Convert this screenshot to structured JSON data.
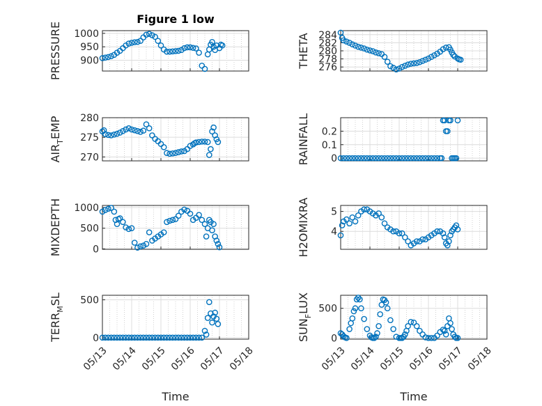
{
  "figure": {
    "title": "Figure 1 low",
    "xlabel": "Time",
    "marker_color": "#0072BD",
    "x_tick_labels": [
      "05/13",
      "05/14",
      "05/15",
      "05/16",
      "05/17",
      "05/18"
    ]
  },
  "chart_data": [
    {
      "type": "scatter",
      "ylabel": "PRESSURE",
      "ylim": [
        860,
        1010
      ],
      "yticks": [
        900,
        950,
        1000
      ],
      "xlim": [
        0,
        5
      ],
      "grid": true,
      "x": [
        0,
        0.1,
        0.2,
        0.3,
        0.4,
        0.5,
        0.6,
        0.7,
        0.8,
        0.9,
        1.0,
        1.1,
        1.2,
        1.3,
        1.4,
        1.5,
        1.6,
        1.7,
        1.8,
        1.9,
        2.0,
        2.1,
        2.2,
        2.3,
        2.4,
        2.5,
        2.6,
        2.7,
        2.8,
        2.9,
        3.0,
        3.1,
        3.2,
        3.3,
        3.4,
        3.5,
        3.6,
        3.65,
        3.7,
        3.75,
        3.8,
        3.85,
        3.9,
        4.0,
        4.05,
        4.1
      ],
      "y": [
        908,
        910,
        912,
        915,
        920,
        928,
        935,
        945,
        955,
        962,
        965,
        967,
        968,
        972,
        985,
        995,
        998,
        993,
        987,
        972,
        955,
        940,
        932,
        932,
        933,
        934,
        935,
        938,
        945,
        948,
        948,
        946,
        944,
        928,
        880,
        868,
        922,
        940,
        958,
        968,
        950,
        938,
        955,
        945,
        958,
        955
      ]
    },
    {
      "type": "scatter",
      "ylabel": "THETA",
      "ylim": [
        275,
        285
      ],
      "yticks": [
        276,
        278,
        280,
        282,
        284
      ],
      "xlim": [
        0,
        5
      ],
      "grid": true,
      "x": [
        0,
        0.05,
        0.1,
        0.2,
        0.3,
        0.4,
        0.5,
        0.6,
        0.7,
        0.8,
        0.9,
        1.0,
        1.1,
        1.2,
        1.3,
        1.4,
        1.5,
        1.6,
        1.7,
        1.8,
        1.9,
        2.0,
        2.1,
        2.2,
        2.3,
        2.4,
        2.5,
        2.6,
        2.7,
        2.8,
        2.9,
        3.0,
        3.1,
        3.2,
        3.3,
        3.4,
        3.5,
        3.6,
        3.7,
        3.75,
        3.8,
        3.85,
        3.9,
        4.0,
        4.05,
        4.1
      ],
      "y": [
        284.5,
        283.2,
        282.6,
        282.3,
        282.0,
        281.6,
        281.3,
        281.0,
        280.8,
        280.6,
        280.3,
        280.1,
        279.9,
        279.6,
        279.4,
        279.2,
        278.5,
        277.3,
        276.2,
        275.8,
        275.4,
        275.6,
        276.0,
        276.3,
        276.6,
        276.8,
        276.9,
        277.0,
        277.2,
        277.5,
        277.8,
        278.1,
        278.5,
        278.9,
        279.3,
        279.8,
        280.4,
        280.8,
        280.9,
        280.3,
        279.6,
        279.0,
        278.6,
        278.1,
        277.9,
        277.8
      ]
    },
    {
      "type": "scatter",
      "ylabel": "AIR_TEMP",
      "ylim": [
        269,
        280
      ],
      "yticks": [
        270,
        275,
        280
      ],
      "xlim": [
        0,
        5
      ],
      "grid": true,
      "x": [
        0,
        0.05,
        0.1,
        0.2,
        0.3,
        0.4,
        0.5,
        0.6,
        0.7,
        0.8,
        0.9,
        1.0,
        1.1,
        1.2,
        1.3,
        1.4,
        1.5,
        1.6,
        1.7,
        1.8,
        1.9,
        2.0,
        2.1,
        2.2,
        2.3,
        2.4,
        2.5,
        2.6,
        2.7,
        2.8,
        2.9,
        3.0,
        3.1,
        3.15,
        3.2,
        3.3,
        3.4,
        3.5,
        3.6,
        3.65,
        3.7,
        3.75,
        3.8,
        3.85,
        3.9,
        3.95
      ],
      "y": [
        276.5,
        276.8,
        275.8,
        275.6,
        275.5,
        275.7,
        275.9,
        276.2,
        276.6,
        277.0,
        277.3,
        277.0,
        276.8,
        276.6,
        276.4,
        276.7,
        278.3,
        277.3,
        275.5,
        274.6,
        274.0,
        273.3,
        272.5,
        271.0,
        270.8,
        270.9,
        271.0,
        271.2,
        271.4,
        271.5,
        272.0,
        272.8,
        273.2,
        273.5,
        273.7,
        273.8,
        273.9,
        273.9,
        273.8,
        270.5,
        272.0,
        276.5,
        277.5,
        275.5,
        274.5,
        273.8
      ]
    },
    {
      "type": "scatter",
      "ylabel": "RAINFALL",
      "ylim": [
        -0.02,
        0.3
      ],
      "yticks": [
        0,
        0.1,
        0.2
      ],
      "xlim": [
        0,
        5
      ],
      "grid": true,
      "x": [
        0,
        0.1,
        0.2,
        0.3,
        0.4,
        0.5,
        0.6,
        0.7,
        0.8,
        0.9,
        1.0,
        1.1,
        1.2,
        1.3,
        1.4,
        1.5,
        1.6,
        1.7,
        1.8,
        1.9,
        2.0,
        2.1,
        2.2,
        2.3,
        2.4,
        2.5,
        2.6,
        2.7,
        2.8,
        2.9,
        3.0,
        3.1,
        3.2,
        3.3,
        3.4,
        3.45,
        3.5,
        3.55,
        3.6,
        3.65,
        3.7,
        3.75,
        3.8,
        3.85,
        3.9,
        3.95,
        4.0
      ],
      "y": [
        0,
        0,
        0,
        0,
        0,
        0,
        0,
        0,
        0,
        0,
        0,
        0,
        0,
        0,
        0,
        0,
        0,
        0,
        0,
        0,
        0,
        0,
        0,
        0,
        0,
        0,
        0,
        0,
        0,
        0,
        0,
        0,
        0,
        0,
        0,
        0,
        0.28,
        0.28,
        0.2,
        0.2,
        0.28,
        0.28,
        0,
        0,
        0,
        0,
        0.28
      ]
    },
    {
      "type": "scatter",
      "ylabel": "MIXDEPTH",
      "ylim": [
        -10,
        1050
      ],
      "yticks": [
        0,
        500,
        1000
      ],
      "xlim": [
        0,
        5
      ],
      "grid": true,
      "x": [
        0,
        0.1,
        0.2,
        0.3,
        0.4,
        0.45,
        0.5,
        0.55,
        0.6,
        0.7,
        0.8,
        0.9,
        1.0,
        1.1,
        1.2,
        1.3,
        1.4,
        1.5,
        1.6,
        1.7,
        1.8,
        1.9,
        2.0,
        2.1,
        2.2,
        2.3,
        2.4,
        2.5,
        2.6,
        2.7,
        2.8,
        2.9,
        3.0,
        3.1,
        3.2,
        3.3,
        3.4,
        3.5,
        3.55,
        3.6,
        3.65,
        3.7,
        3.75,
        3.8,
        3.85,
        3.9,
        3.95,
        4.0
      ],
      "y": [
        900,
        940,
        970,
        990,
        900,
        700,
        600,
        720,
        740,
        650,
        520,
        480,
        500,
        150,
        30,
        60,
        80,
        120,
        400,
        200,
        250,
        300,
        350,
        400,
        650,
        680,
        700,
        720,
        800,
        900,
        950,
        920,
        850,
        700,
        750,
        820,
        700,
        600,
        300,
        500,
        700,
        650,
        450,
        600,
        300,
        200,
        120,
        40
      ]
    },
    {
      "type": "scatter",
      "ylabel": "H2OMIXRA",
      "ylim": [
        3.1,
        5.3
      ],
      "yticks": [
        4,
        5
      ],
      "xlim": [
        0,
        5
      ],
      "grid": true,
      "x": [
        0,
        0.05,
        0.1,
        0.2,
        0.3,
        0.4,
        0.5,
        0.6,
        0.7,
        0.8,
        0.9,
        1.0,
        1.1,
        1.2,
        1.3,
        1.4,
        1.5,
        1.6,
        1.7,
        1.8,
        1.9,
        2.0,
        2.1,
        2.2,
        2.3,
        2.4,
        2.5,
        2.6,
        2.7,
        2.8,
        2.9,
        3.0,
        3.1,
        3.2,
        3.3,
        3.4,
        3.5,
        3.55,
        3.6,
        3.65,
        3.7,
        3.75,
        3.8,
        3.85,
        3.9,
        3.95,
        4.0
      ],
      "y": [
        3.8,
        4.3,
        4.5,
        4.6,
        4.4,
        4.7,
        4.5,
        4.8,
        5.0,
        5.1,
        5.1,
        5.0,
        4.9,
        4.8,
        4.9,
        4.7,
        4.4,
        4.2,
        4.1,
        4.0,
        4.0,
        3.9,
        3.9,
        3.7,
        3.5,
        3.3,
        3.4,
        3.5,
        3.5,
        3.6,
        3.6,
        3.7,
        3.8,
        3.9,
        4.0,
        4.0,
        3.9,
        3.7,
        3.4,
        3.3,
        3.5,
        3.8,
        4.0,
        4.1,
        4.2,
        4.3,
        4.1
      ]
    },
    {
      "type": "scatter",
      "ylabel": "TERR_MSL",
      "ylim": [
        -20,
        560
      ],
      "yticks": [
        0,
        500
      ],
      "xlim": [
        0,
        5
      ],
      "grid": true,
      "x": [
        0,
        0.1,
        0.2,
        0.3,
        0.4,
        0.5,
        0.6,
        0.7,
        0.8,
        0.9,
        1.0,
        1.1,
        1.2,
        1.3,
        1.4,
        1.5,
        1.6,
        1.7,
        1.8,
        1.9,
        2.0,
        2.1,
        2.2,
        2.3,
        2.4,
        2.5,
        2.6,
        2.7,
        2.8,
        2.9,
        3.0,
        3.1,
        3.2,
        3.3,
        3.4,
        3.5,
        3.55,
        3.6,
        3.65,
        3.7,
        3.75,
        3.8,
        3.85,
        3.9,
        3.95
      ],
      "y": [
        0,
        0,
        0,
        0,
        0,
        0,
        0,
        0,
        0,
        0,
        0,
        0,
        0,
        0,
        0,
        0,
        0,
        0,
        0,
        0,
        0,
        0,
        0,
        0,
        0,
        0,
        0,
        0,
        0,
        0,
        0,
        0,
        0,
        0,
        0,
        90,
        40,
        260,
        470,
        320,
        200,
        280,
        330,
        250,
        180
      ]
    },
    {
      "type": "scatter",
      "ylabel": "SUN_FLUX",
      "ylim": [
        -20,
        720
      ],
      "yticks": [
        0,
        500
      ],
      "xlim": [
        0,
        5
      ],
      "grid": true,
      "x": [
        0,
        0.05,
        0.1,
        0.15,
        0.2,
        0.3,
        0.35,
        0.4,
        0.45,
        0.5,
        0.55,
        0.6,
        0.65,
        0.7,
        0.8,
        0.9,
        1.0,
        1.05,
        1.1,
        1.15,
        1.2,
        1.25,
        1.3,
        1.35,
        1.4,
        1.45,
        1.5,
        1.55,
        1.6,
        1.7,
        1.8,
        1.9,
        2.0,
        2.05,
        2.1,
        2.15,
        2.2,
        2.25,
        2.3,
        2.4,
        2.5,
        2.6,
        2.7,
        2.8,
        2.9,
        3.0,
        3.1,
        3.2,
        3.3,
        3.4,
        3.5,
        3.55,
        3.6,
        3.65,
        3.7,
        3.75,
        3.8,
        3.85,
        3.9,
        3.95,
        4.0
      ],
      "y": [
        80,
        60,
        30,
        10,
        0,
        150,
        250,
        330,
        450,
        500,
        650,
        680,
        650,
        500,
        320,
        150,
        40,
        10,
        0,
        0,
        20,
        80,
        200,
        400,
        560,
        650,
        640,
        600,
        500,
        300,
        150,
        20,
        0,
        0,
        0,
        20,
        60,
        120,
        200,
        270,
        260,
        200,
        120,
        60,
        10,
        0,
        0,
        0,
        40,
        100,
        140,
        120,
        60,
        200,
        330,
        250,
        150,
        60,
        20,
        0,
        0
      ]
    }
  ]
}
